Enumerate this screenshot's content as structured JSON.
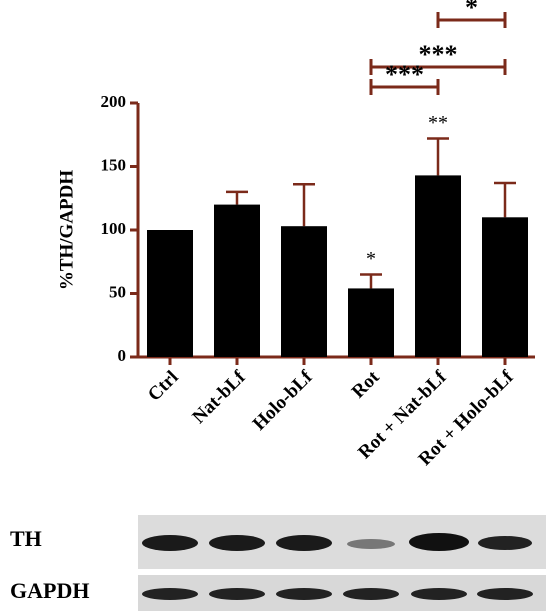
{
  "chart_data": {
    "type": "bar",
    "categories": [
      "Ctrl",
      "Nat-bLf",
      "Holo-bLf",
      "Rot",
      "Rot + Nat-bLf",
      "Rot + Holo-bLf"
    ],
    "values": [
      100,
      120,
      103,
      54,
      143,
      110
    ],
    "errors": [
      0,
      10,
      33,
      11,
      29,
      27
    ],
    "annotations": [
      null,
      null,
      null,
      "*",
      "**",
      null
    ],
    "brackets": [
      "*",
      "***",
      "***"
    ],
    "color": "#000000",
    "axis_color": "#7b2a1a",
    "ylabel": "%TH/GAPDH",
    "ylim": [
      0,
      200
    ],
    "yticks": [
      0,
      50,
      100,
      150,
      200
    ]
  },
  "blot": {
    "labels": [
      "TH",
      "GAPDH"
    ]
  }
}
